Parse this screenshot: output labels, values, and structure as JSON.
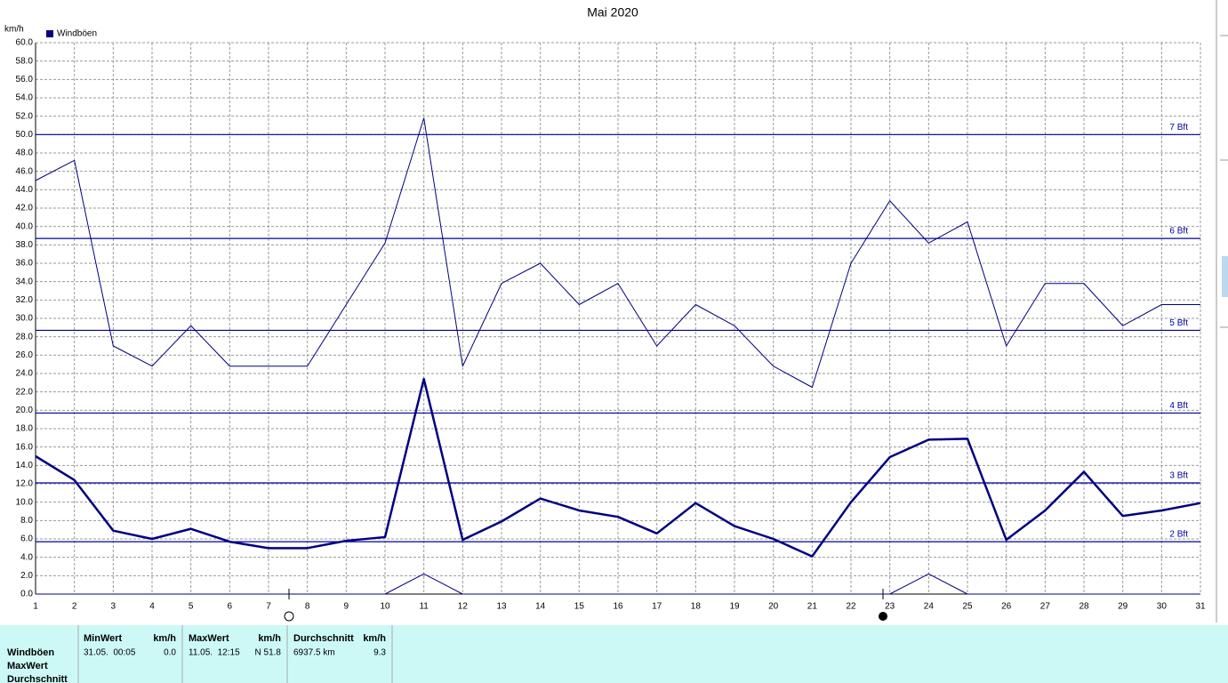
{
  "chart_data": {
    "type": "line",
    "title": "Mai 2020",
    "ylabel": "km/h",
    "x": [
      1,
      2,
      3,
      4,
      5,
      6,
      7,
      8,
      9,
      10,
      11,
      12,
      13,
      14,
      15,
      16,
      17,
      18,
      19,
      20,
      21,
      22,
      23,
      24,
      25,
      26,
      27,
      28,
      29,
      30,
      31
    ],
    "xlim": [
      1,
      31
    ],
    "xticks": [
      1,
      2,
      3,
      4,
      5,
      6,
      7,
      8,
      9,
      10,
      11,
      12,
      13,
      14,
      15,
      16,
      17,
      18,
      19,
      20,
      21,
      22,
      23,
      24,
      25,
      26,
      27,
      28,
      29,
      30,
      31
    ],
    "ylim": [
      0,
      60
    ],
    "yticks": [
      {
        "value": 0,
        "label": "0.0"
      },
      {
        "value": 2,
        "label": "2.0"
      },
      {
        "value": 4,
        "label": "4.0"
      },
      {
        "value": 6,
        "label": "6.0"
      },
      {
        "value": 8,
        "label": "8.0"
      },
      {
        "value": 10,
        "label": "10.0"
      },
      {
        "value": 12,
        "label": "12.0"
      },
      {
        "value": 14,
        "label": "14.0"
      },
      {
        "value": 16,
        "label": "16.0"
      },
      {
        "value": 18,
        "label": "18.0"
      },
      {
        "value": 20,
        "label": "20.0"
      },
      {
        "value": 22,
        "label": "22.0"
      },
      {
        "value": 24,
        "label": "24.0"
      },
      {
        "value": 26,
        "label": "26.0"
      },
      {
        "value": 28,
        "label": "28.0"
      },
      {
        "value": 30,
        "label": "30.0"
      },
      {
        "value": 32,
        "label": "32.0"
      },
      {
        "value": 34,
        "label": "34.0"
      },
      {
        "value": 36,
        "label": "36.0"
      },
      {
        "value": 38,
        "label": "38.0"
      },
      {
        "value": 40,
        "label": "40.0"
      },
      {
        "value": 42,
        "label": "42.0"
      },
      {
        "value": 44,
        "label": "44.0"
      },
      {
        "value": 46,
        "label": "46.0"
      },
      {
        "value": 48,
        "label": "48.0"
      },
      {
        "value": 50,
        "label": "50.0"
      },
      {
        "value": 52,
        "label": "52.0"
      },
      {
        "value": 54,
        "label": "54.0"
      },
      {
        "value": 56,
        "label": "56.0"
      },
      {
        "value": 58,
        "label": "58.0"
      },
      {
        "value": 60,
        "label": "60.0"
      }
    ],
    "grid": true,
    "legend": "top-left",
    "series": [
      {
        "name": "Windböen",
        "color": "#000080",
        "line_width": 2.5,
        "values": [
          15.0,
          12.4,
          6.9,
          6.0,
          7.1,
          5.7,
          5.0,
          5.0,
          5.8,
          6.2,
          23.4,
          5.9,
          7.9,
          10.4,
          9.1,
          8.4,
          6.6,
          9.9,
          7.4,
          6.0,
          4.1,
          10.0,
          14.9,
          16.8,
          16.9,
          5.9,
          9.1,
          13.3,
          8.5,
          9.1,
          9.9
        ]
      },
      {
        "color": "#000080",
        "line_width": 1,
        "values": [
          45.0,
          47.2,
          27.0,
          24.8,
          29.2,
          24.8,
          24.8,
          24.8,
          31.5,
          38.2,
          51.8,
          24.8,
          33.8,
          36.0,
          31.5,
          33.8,
          27.0,
          31.5,
          29.2,
          24.8,
          22.5,
          36.0,
          42.8,
          38.2,
          40.5,
          27.0,
          33.8,
          33.8,
          29.2,
          31.5,
          31.5
        ]
      },
      {
        "color": "#000080",
        "line_width": 1,
        "values": [
          0,
          0,
          0,
          0,
          0,
          0,
          0,
          0,
          0,
          0,
          2.2,
          0,
          0,
          0,
          0,
          0,
          0,
          0,
          0,
          0,
          0,
          0,
          0,
          2.2,
          0,
          0,
          0,
          0,
          0,
          0,
          0
        ]
      }
    ],
    "reference_lines": [
      {
        "value": 5.7,
        "label": "2 Bft"
      },
      {
        "value": 12.1,
        "label": "3 Bft"
      },
      {
        "value": 19.7,
        "label": "4 Bft"
      },
      {
        "value": 28.7,
        "label": "5 Bft"
      },
      {
        "value": 38.7,
        "label": "6 Bft"
      },
      {
        "value": 50.0,
        "label": "7 Bft"
      }
    ],
    "reference_color": "#000099"
  },
  "stats": {
    "row_labels": [
      "Windböen",
      "MaxWert",
      "Durchschnitt"
    ],
    "columns": [
      {
        "header": "MinWert",
        "unit": "km/h",
        "cells": [
          "31.05.  00:05",
          "0.0"
        ]
      },
      {
        "header": "MaxWert",
        "unit": "km/h",
        "cells": [
          "11.05.  12:15",
          "N 51.8"
        ]
      },
      {
        "header": "Durchschnitt",
        "unit": "km/h",
        "cells": [
          "6937.5 km",
          "9.3"
        ]
      }
    ]
  }
}
